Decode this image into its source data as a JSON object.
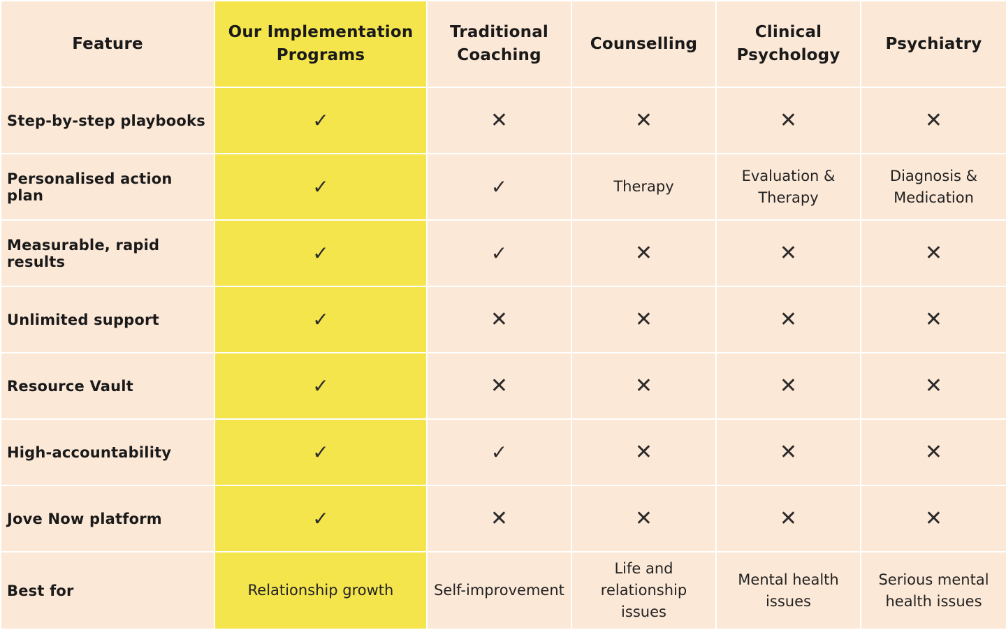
{
  "columns": [
    "Feature",
    "Our Implementation Programs",
    "Traditional Coaching",
    "Counselling",
    "Clinical Psychology",
    "Psychiatry"
  ],
  "icons": {
    "check": "✓",
    "cross": "✕",
    "check_name": "checkmark-icon",
    "cross_name": "cross-icon"
  },
  "colors": {
    "highlight": "#f5e54d",
    "cell_background": "#fce8d7",
    "grid_line": "#ffffff"
  },
  "rows": [
    {
      "feature": "Step-by-step playbooks",
      "cells": [
        "✓",
        "✕",
        "✕",
        "✕",
        "✕"
      ]
    },
    {
      "feature": "Personalised action plan",
      "cells": [
        "✓",
        "✓",
        "Therapy",
        "Evaluation & Therapy",
        "Diagnosis & Medication"
      ]
    },
    {
      "feature": "Measurable, rapid results",
      "cells": [
        "✓",
        "✓",
        "✕",
        "✕",
        "✕"
      ]
    },
    {
      "feature": "Unlimited support",
      "cells": [
        "✓",
        "✕",
        "✕",
        "✕",
        "✕"
      ]
    },
    {
      "feature": "Resource Vault",
      "cells": [
        "✓",
        "✕",
        "✕",
        "✕",
        "✕"
      ]
    },
    {
      "feature": "High-accountability",
      "cells": [
        "✓",
        "✓",
        "✕",
        "✕",
        "✕"
      ]
    },
    {
      "feature": "Jove Now platform",
      "cells": [
        "✓",
        "✕",
        "✕",
        "✕",
        "✕"
      ]
    },
    {
      "feature": "Best for",
      "cells": [
        "Relationship growth",
        "Self-improvement",
        "Life and relationship issues",
        "Mental health issues",
        "Serious mental health issues"
      ]
    }
  ]
}
